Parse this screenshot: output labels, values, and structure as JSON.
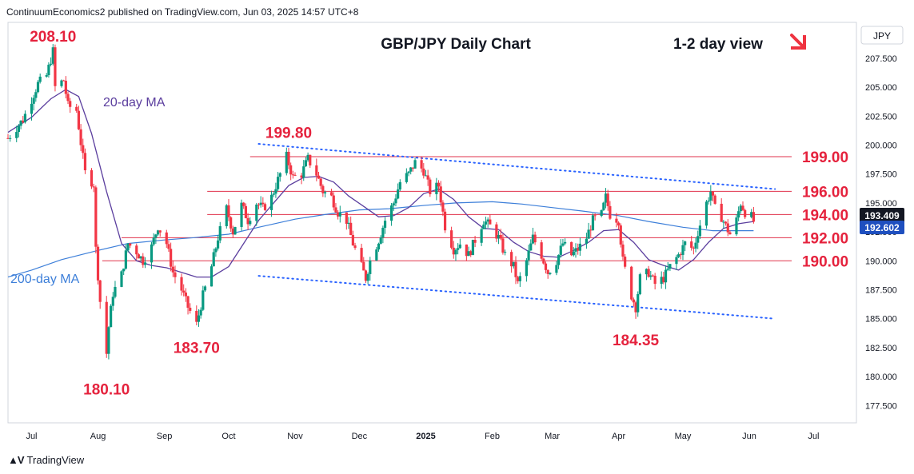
{
  "header": {
    "published": "ContinuumEconomics2 published on TradingView.com, Jun 03, 2025 14:57 UTC+8"
  },
  "footer": {
    "brand": "TradingView",
    "logo_icon": "tradingview-logo-icon"
  },
  "colors": {
    "up": "#089981",
    "down": "#f23645",
    "level_text": "#e5223d",
    "level_line": "#e0334b",
    "trend": "#2962ff",
    "ma20": "#5b3e9e",
    "ma200": "#3d7fd9",
    "price_badge": "#131722",
    "ma_badge": "#1e4fbf",
    "arrow": "#ef3340"
  },
  "chart_data": {
    "type": "candlestick",
    "title": "GBP/JPY Daily Chart",
    "view_label": "1-2 day view",
    "view_icon": "down-right-arrow-icon",
    "currency": "JPY",
    "ylim": [
      176.0,
      210.6
    ],
    "y_ticks": [
      "207.500",
      "205.000",
      "202.500",
      "200.000",
      "197.500",
      "195.000",
      "192.500",
      "190.000",
      "187.500",
      "185.000",
      "182.500",
      "180.000",
      "177.500"
    ],
    "y_tick_values": [
      207.5,
      205.0,
      202.5,
      200.0,
      197.5,
      195.0,
      192.5,
      190.0,
      187.5,
      185.0,
      182.5,
      180.0,
      177.5
    ],
    "x_ticks": [
      "Jul",
      "Aug",
      "Sep",
      "Oct",
      "Nov",
      "Dec",
      "2025",
      "Feb",
      "Mar",
      "Apr",
      "May",
      "Jun",
      "Jul"
    ],
    "x_tick_dates": [
      "2024-07-01",
      "2024-08-01",
      "2024-09-01",
      "2024-10-01",
      "2024-11-01",
      "2024-12-01",
      "2025-01-01",
      "2025-02-01",
      "2025-03-01",
      "2025-04-01",
      "2025-05-01",
      "2025-06-01",
      "2025-07-01"
    ],
    "x_range": [
      "2024-06-20",
      "2025-07-21"
    ],
    "last_price": "193.409",
    "ma_value": "192.602",
    "levels": [
      {
        "label": "199.00",
        "value": 199.0,
        "from": "2024-10-11"
      },
      {
        "label": "196.00",
        "value": 196.0,
        "from": "2024-09-21"
      },
      {
        "label": "194.00",
        "value": 194.0,
        "from": "2024-09-21"
      },
      {
        "label": "192.00",
        "value": 192.0,
        "from": "2024-08-12"
      },
      {
        "label": "190.00",
        "value": 190.0,
        "from": "2024-08-03"
      }
    ],
    "annotations": [
      {
        "label": "208.10",
        "date": "2024-07-11",
        "value": 208.1,
        "pos": "above"
      },
      {
        "label": "180.10",
        "date": "2024-08-05",
        "value": 180.1,
        "pos": "below"
      },
      {
        "label": "183.70",
        "date": "2024-09-16",
        "value": 183.7,
        "pos": "below"
      },
      {
        "label": "199.80",
        "date": "2024-10-29",
        "value": 199.8,
        "pos": "above"
      },
      {
        "label": "184.35",
        "date": "2025-04-09",
        "value": 184.35,
        "pos": "below"
      }
    ],
    "trendlines": [
      {
        "from": [
          "2024-10-15",
          200.1
        ],
        "to": [
          "2025-06-13",
          196.2
        ]
      },
      {
        "from": [
          "2024-10-15",
          188.7
        ],
        "to": [
          "2025-06-13",
          185.0
        ]
      }
    ],
    "series": [
      {
        "name": "20-day MA",
        "points": [
          [
            "2024-06-20",
            201.1
          ],
          [
            "2024-07-01",
            202.4
          ],
          [
            "2024-07-10",
            204.0
          ],
          [
            "2024-07-17",
            204.8
          ],
          [
            "2024-07-23",
            204.2
          ],
          [
            "2024-07-29",
            201.0
          ],
          [
            "2024-08-05",
            196.0
          ],
          [
            "2024-08-12",
            191.5
          ],
          [
            "2024-08-19",
            190.0
          ],
          [
            "2024-08-26",
            189.6
          ],
          [
            "2024-09-02",
            189.4
          ],
          [
            "2024-09-09",
            189.0
          ],
          [
            "2024-09-16",
            188.6
          ],
          [
            "2024-09-23",
            188.6
          ],
          [
            "2024-10-01",
            189.5
          ],
          [
            "2024-10-08",
            191.5
          ],
          [
            "2024-10-15",
            193.5
          ],
          [
            "2024-10-22",
            195.0
          ],
          [
            "2024-10-29",
            196.5
          ],
          [
            "2024-11-05",
            197.2
          ],
          [
            "2024-11-12",
            197.3
          ],
          [
            "2024-11-19",
            196.8
          ],
          [
            "2024-11-26",
            195.6
          ],
          [
            "2024-12-03",
            194.7
          ],
          [
            "2024-12-10",
            193.8
          ],
          [
            "2024-12-17",
            193.9
          ],
          [
            "2024-12-24",
            194.6
          ],
          [
            "2024-12-31",
            195.8
          ],
          [
            "2025-01-07",
            196.2
          ],
          [
            "2025-01-14",
            195.3
          ],
          [
            "2025-01-21",
            193.8
          ],
          [
            "2025-01-28",
            192.8
          ],
          [
            "2025-02-04",
            192.7
          ],
          [
            "2025-02-11",
            191.6
          ],
          [
            "2025-02-18",
            190.8
          ],
          [
            "2025-02-25",
            190.4
          ],
          [
            "2025-03-04",
            190.3
          ],
          [
            "2025-03-11",
            190.9
          ],
          [
            "2025-03-18",
            191.6
          ],
          [
            "2025-03-25",
            192.6
          ],
          [
            "2025-04-01",
            192.7
          ],
          [
            "2025-04-08",
            191.6
          ],
          [
            "2025-04-15",
            190.1
          ],
          [
            "2025-04-22",
            189.6
          ],
          [
            "2025-04-29",
            189.2
          ],
          [
            "2025-05-06",
            190.1
          ],
          [
            "2025-05-13",
            191.6
          ],
          [
            "2025-05-20",
            192.8
          ],
          [
            "2025-05-27",
            193.2
          ],
          [
            "2025-06-03",
            193.4
          ]
        ]
      },
      {
        "name": "200-day MA",
        "points": [
          [
            "2024-06-20",
            188.6
          ],
          [
            "2024-07-01",
            189.2
          ],
          [
            "2024-07-15",
            190.1
          ],
          [
            "2024-08-01",
            190.9
          ],
          [
            "2024-08-15",
            191.5
          ],
          [
            "2024-09-01",
            191.8
          ],
          [
            "2024-09-15",
            192.0
          ],
          [
            "2024-10-01",
            192.3
          ],
          [
            "2024-10-15",
            192.9
          ],
          [
            "2024-11-01",
            193.6
          ],
          [
            "2024-11-15",
            194.0
          ],
          [
            "2024-12-01",
            194.4
          ],
          [
            "2024-12-15",
            194.5
          ],
          [
            "2025-01-01",
            194.8
          ],
          [
            "2025-01-15",
            195.0
          ],
          [
            "2025-02-01",
            195.1
          ],
          [
            "2025-02-15",
            194.9
          ],
          [
            "2025-03-01",
            194.6
          ],
          [
            "2025-03-15",
            194.3
          ],
          [
            "2025-04-01",
            193.9
          ],
          [
            "2025-04-15",
            193.4
          ],
          [
            "2025-05-01",
            192.9
          ],
          [
            "2025-05-15",
            192.6
          ],
          [
            "2025-06-03",
            192.6
          ]
        ]
      },
      {
        "name": "GBP/JPY",
        "points": [
          [
            "2024-06-20",
            200.6
          ],
          [
            "2024-06-27",
            202.2
          ],
          [
            "2024-07-04",
            205.3
          ],
          [
            "2024-07-08",
            206.0
          ],
          [
            "2024-07-11",
            208.1
          ],
          [
            "2024-07-12",
            205.0
          ],
          [
            "2024-07-16",
            205.6
          ],
          [
            "2024-07-18",
            203.4
          ],
          [
            "2024-07-22",
            203.0
          ],
          [
            "2024-07-24",
            200.2
          ],
          [
            "2024-07-26",
            197.6
          ],
          [
            "2024-07-30",
            196.6
          ],
          [
            "2024-07-31",
            191.0
          ],
          [
            "2024-08-02",
            186.5
          ],
          [
            "2024-08-05",
            182.0
          ],
          [
            "2024-08-06",
            184.3
          ],
          [
            "2024-08-08",
            187.2
          ],
          [
            "2024-08-12",
            188.8
          ],
          [
            "2024-08-15",
            191.5
          ],
          [
            "2024-08-19",
            190.8
          ],
          [
            "2024-08-22",
            190.0
          ],
          [
            "2024-08-26",
            191.2
          ],
          [
            "2024-08-29",
            193.0
          ],
          [
            "2024-09-02",
            191.5
          ],
          [
            "2024-09-05",
            189.0
          ],
          [
            "2024-09-09",
            187.5
          ],
          [
            "2024-09-12",
            186.0
          ],
          [
            "2024-09-16",
            184.5
          ],
          [
            "2024-09-19",
            187.0
          ],
          [
            "2024-09-23",
            189.5
          ],
          [
            "2024-09-26",
            192.0
          ],
          [
            "2024-09-30",
            194.5
          ],
          [
            "2024-10-03",
            192.5
          ],
          [
            "2024-10-07",
            194.8
          ],
          [
            "2024-10-10",
            193.5
          ],
          [
            "2024-10-14",
            195.0
          ],
          [
            "2024-10-17",
            194.5
          ],
          [
            "2024-10-21",
            195.5
          ],
          [
            "2024-10-24",
            197.0
          ],
          [
            "2024-10-28",
            199.0
          ],
          [
            "2024-10-31",
            197.2
          ],
          [
            "2024-11-04",
            197.5
          ],
          [
            "2024-11-07",
            198.8
          ],
          [
            "2024-11-11",
            197.5
          ],
          [
            "2024-11-14",
            196.0
          ],
          [
            "2024-11-18",
            195.5
          ],
          [
            "2024-11-21",
            194.2
          ],
          [
            "2024-11-25",
            193.5
          ],
          [
            "2024-11-28",
            191.5
          ],
          [
            "2024-12-02",
            189.5
          ],
          [
            "2024-12-04",
            188.5
          ],
          [
            "2024-12-06",
            190.0
          ],
          [
            "2024-12-10",
            191.8
          ],
          [
            "2024-12-13",
            193.5
          ],
          [
            "2024-12-17",
            195.0
          ],
          [
            "2024-12-20",
            196.8
          ],
          [
            "2024-12-24",
            197.5
          ],
          [
            "2024-12-27",
            198.5
          ],
          [
            "2024-12-31",
            197.8
          ],
          [
            "2025-01-03",
            196.0
          ],
          [
            "2025-01-07",
            196.5
          ],
          [
            "2025-01-10",
            193.0
          ],
          [
            "2025-01-14",
            191.0
          ],
          [
            "2025-01-17",
            191.5
          ],
          [
            "2025-01-21",
            190.5
          ],
          [
            "2025-01-24",
            191.8
          ],
          [
            "2025-01-28",
            193.5
          ],
          [
            "2025-01-31",
            193.0
          ],
          [
            "2025-02-04",
            192.0
          ],
          [
            "2025-02-07",
            190.5
          ],
          [
            "2025-02-11",
            189.5
          ],
          [
            "2025-02-13",
            188.0
          ],
          [
            "2025-02-17",
            190.0
          ],
          [
            "2025-02-20",
            192.0
          ],
          [
            "2025-02-24",
            190.5
          ],
          [
            "2025-02-27",
            189.0
          ],
          [
            "2025-03-03",
            190.0
          ],
          [
            "2025-03-06",
            191.5
          ],
          [
            "2025-03-10",
            190.5
          ],
          [
            "2025-03-13",
            191.0
          ],
          [
            "2025-03-17",
            192.0
          ],
          [
            "2025-03-20",
            193.5
          ],
          [
            "2025-03-24",
            194.0
          ],
          [
            "2025-03-26",
            195.5
          ],
          [
            "2025-03-28",
            194.0
          ],
          [
            "2025-04-01",
            193.5
          ],
          [
            "2025-04-03",
            190.0
          ],
          [
            "2025-04-07",
            187.0
          ],
          [
            "2025-04-09",
            186.0
          ],
          [
            "2025-04-11",
            188.5
          ],
          [
            "2025-04-15",
            189.0
          ],
          [
            "2025-04-18",
            188.0
          ],
          [
            "2025-04-22",
            188.5
          ],
          [
            "2025-04-25",
            189.5
          ],
          [
            "2025-04-29",
            190.5
          ],
          [
            "2025-05-02",
            191.5
          ],
          [
            "2025-05-06",
            191.0
          ],
          [
            "2025-05-08",
            192.5
          ],
          [
            "2025-05-12",
            195.0
          ],
          [
            "2025-05-14",
            196.0
          ],
          [
            "2025-05-16",
            194.5
          ],
          [
            "2025-05-19",
            193.8
          ],
          [
            "2025-05-21",
            193.0
          ],
          [
            "2025-05-23",
            192.3
          ],
          [
            "2025-05-26",
            193.5
          ],
          [
            "2025-05-28",
            195.0
          ],
          [
            "2025-05-30",
            194.2
          ],
          [
            "2025-06-02",
            193.8
          ],
          [
            "2025-06-03",
            193.4
          ]
        ]
      }
    ],
    "legend_labels": [
      {
        "label": "20-day MA",
        "color": "#5b3e9e"
      },
      {
        "label": "200-day MA",
        "color": "#3d7fd9"
      }
    ]
  }
}
